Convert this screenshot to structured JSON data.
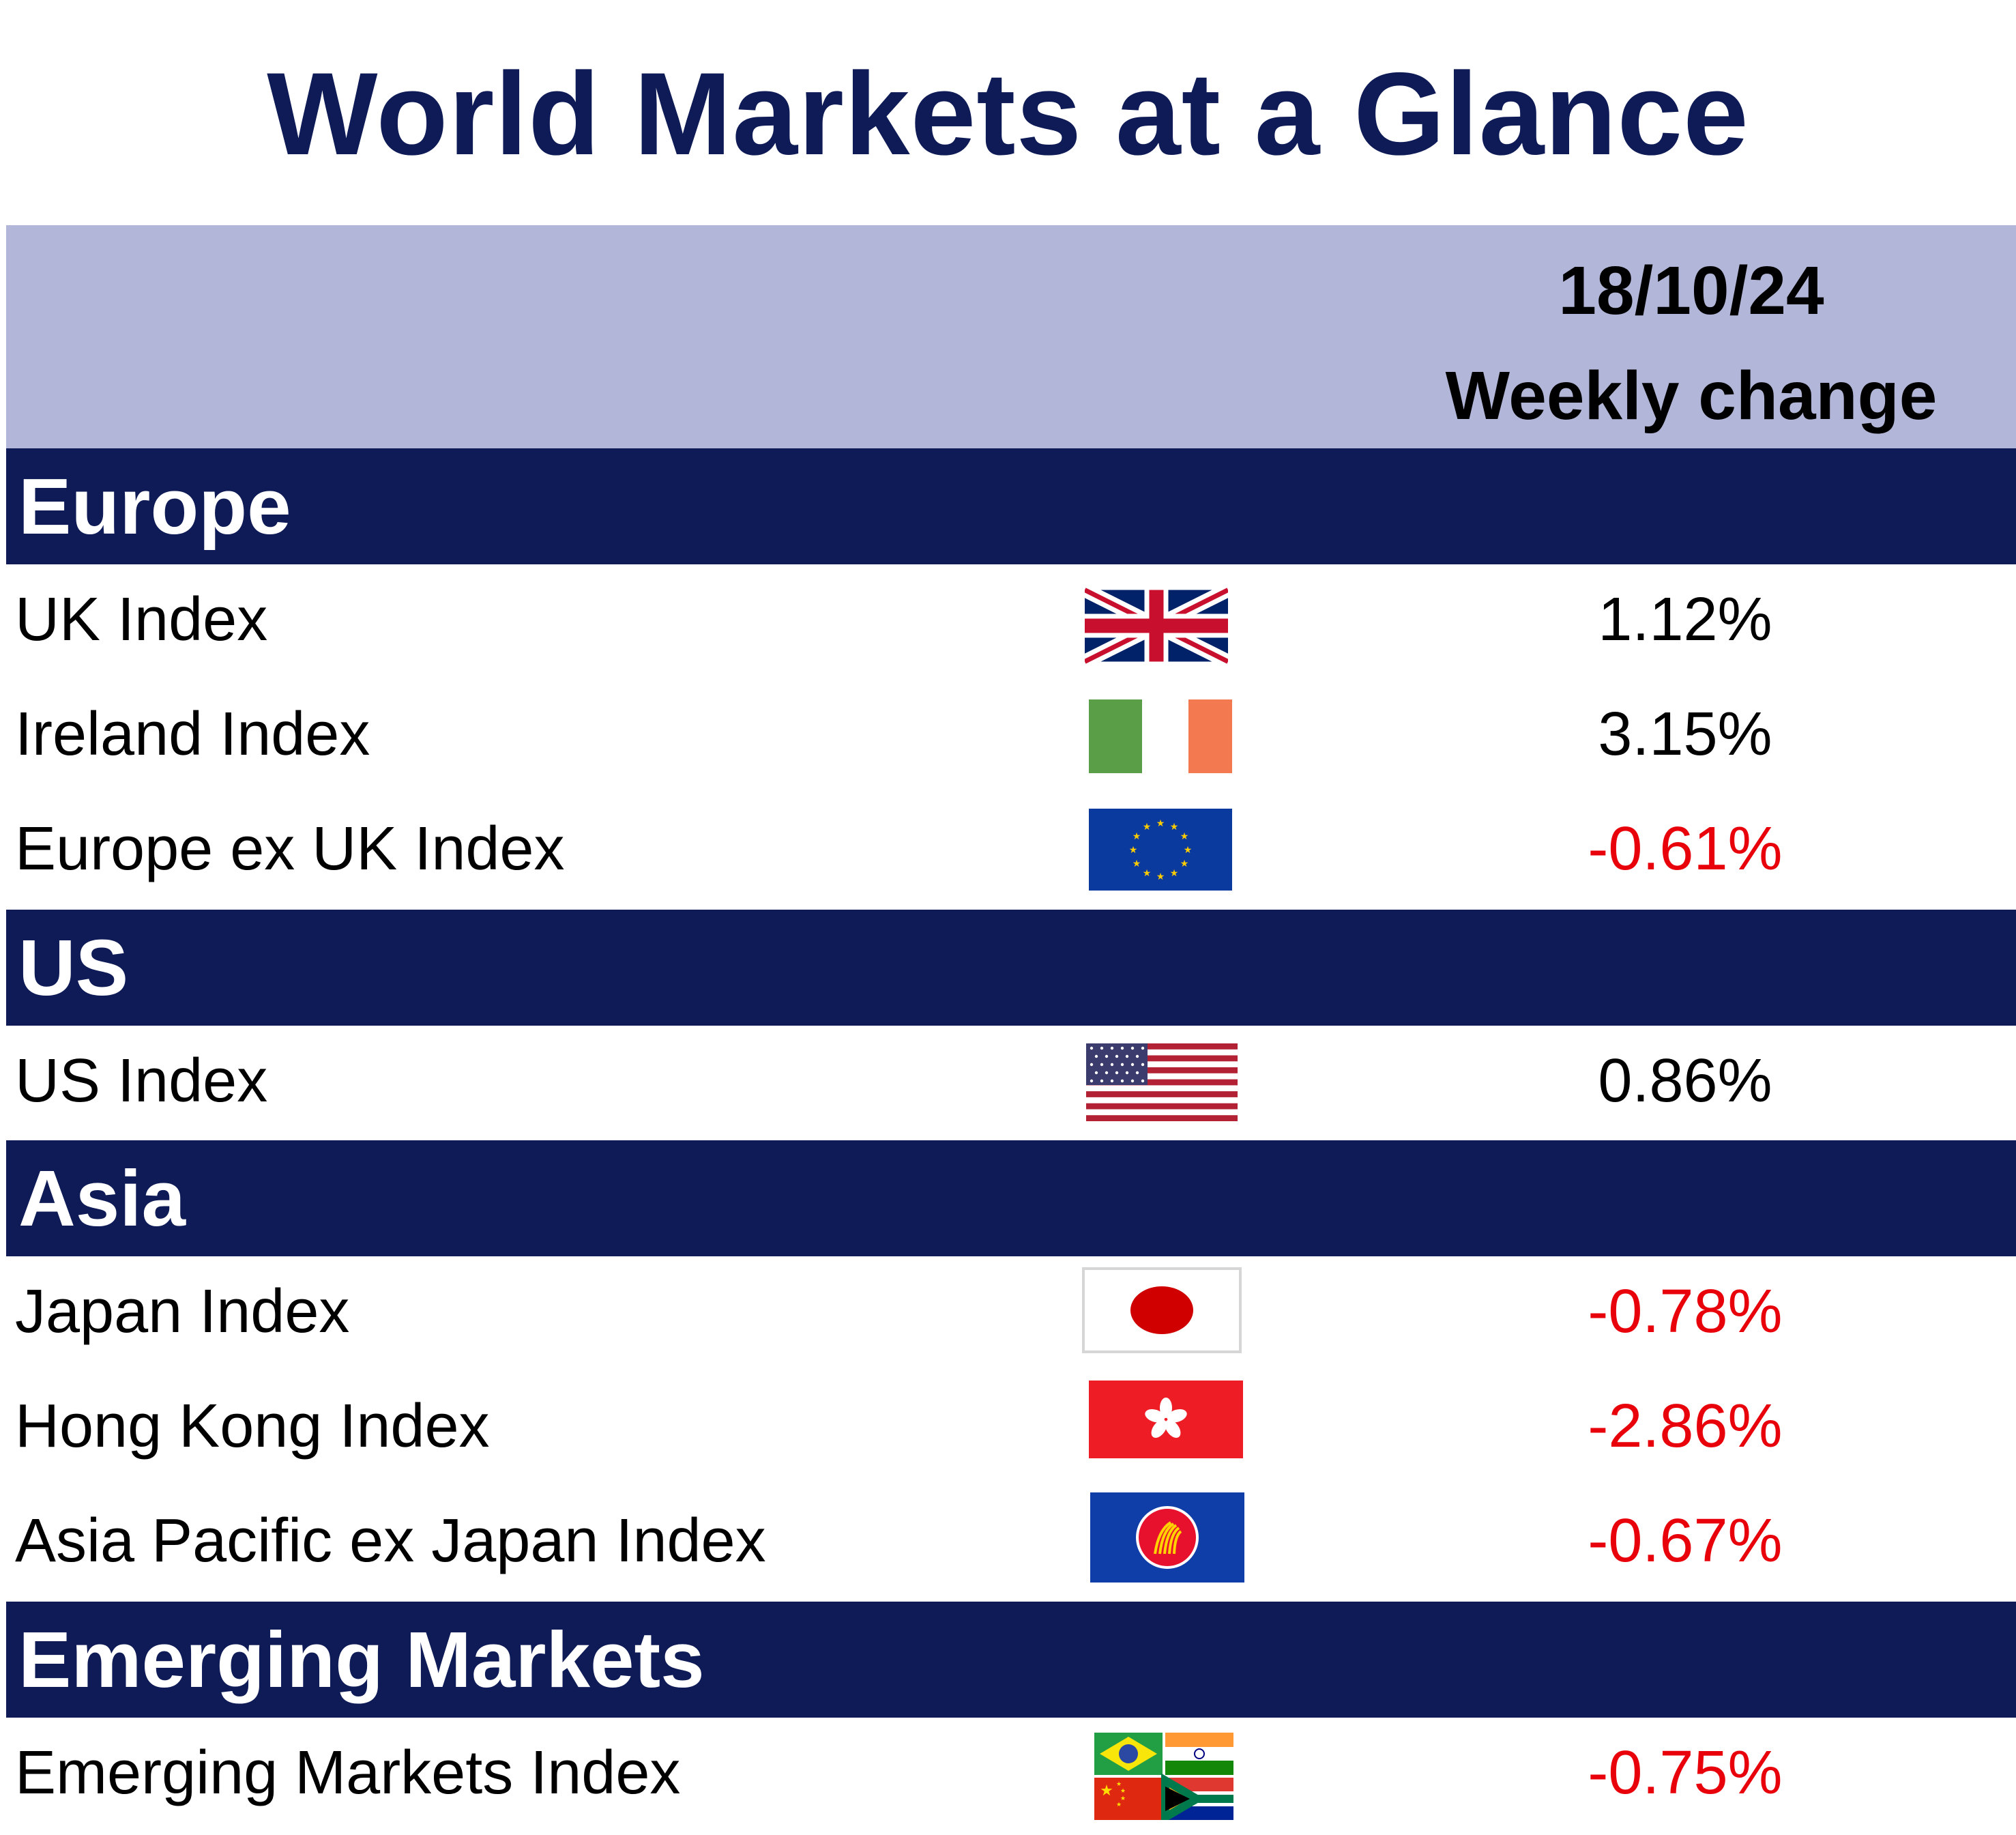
{
  "title": "World Markets at a Glance",
  "header": {
    "date": "18/10/24",
    "column_label": "Weekly change"
  },
  "colors": {
    "navy": "#0e1b56",
    "header_band": "#b2b6d8",
    "negative": "#e8000a",
    "positive": "#000000"
  },
  "sections": [
    {
      "label": "Europe",
      "rows": [
        {
          "name": "UK Index",
          "flag": "uk-flag-icon",
          "change": "1.12%"
        },
        {
          "name": "Ireland Index",
          "flag": "ireland-flag-icon",
          "change": "3.15%"
        },
        {
          "name": "Europe ex UK Index",
          "flag": "eu-flag-icon",
          "change": "-0.61%"
        }
      ]
    },
    {
      "label": "US",
      "rows": [
        {
          "name": "US Index",
          "flag": "us-flag-icon",
          "change": "0.86%"
        }
      ]
    },
    {
      "label": "Asia",
      "rows": [
        {
          "name": "Japan Index",
          "flag": "japan-flag-icon",
          "change": "-0.78%"
        },
        {
          "name": "Hong Kong Index",
          "flag": "hong-kong-flag-icon",
          "change": "-2.86%"
        },
        {
          "name": "Asia Pacific ex Japan Index",
          "flag": "asean-flag-icon",
          "change": "-0.67%"
        }
      ]
    },
    {
      "label": "Emerging Markets",
      "rows": [
        {
          "name": "Emerging Markets Index",
          "flag": "brics-flags-icon",
          "change": "-0.75%"
        }
      ]
    }
  ]
}
